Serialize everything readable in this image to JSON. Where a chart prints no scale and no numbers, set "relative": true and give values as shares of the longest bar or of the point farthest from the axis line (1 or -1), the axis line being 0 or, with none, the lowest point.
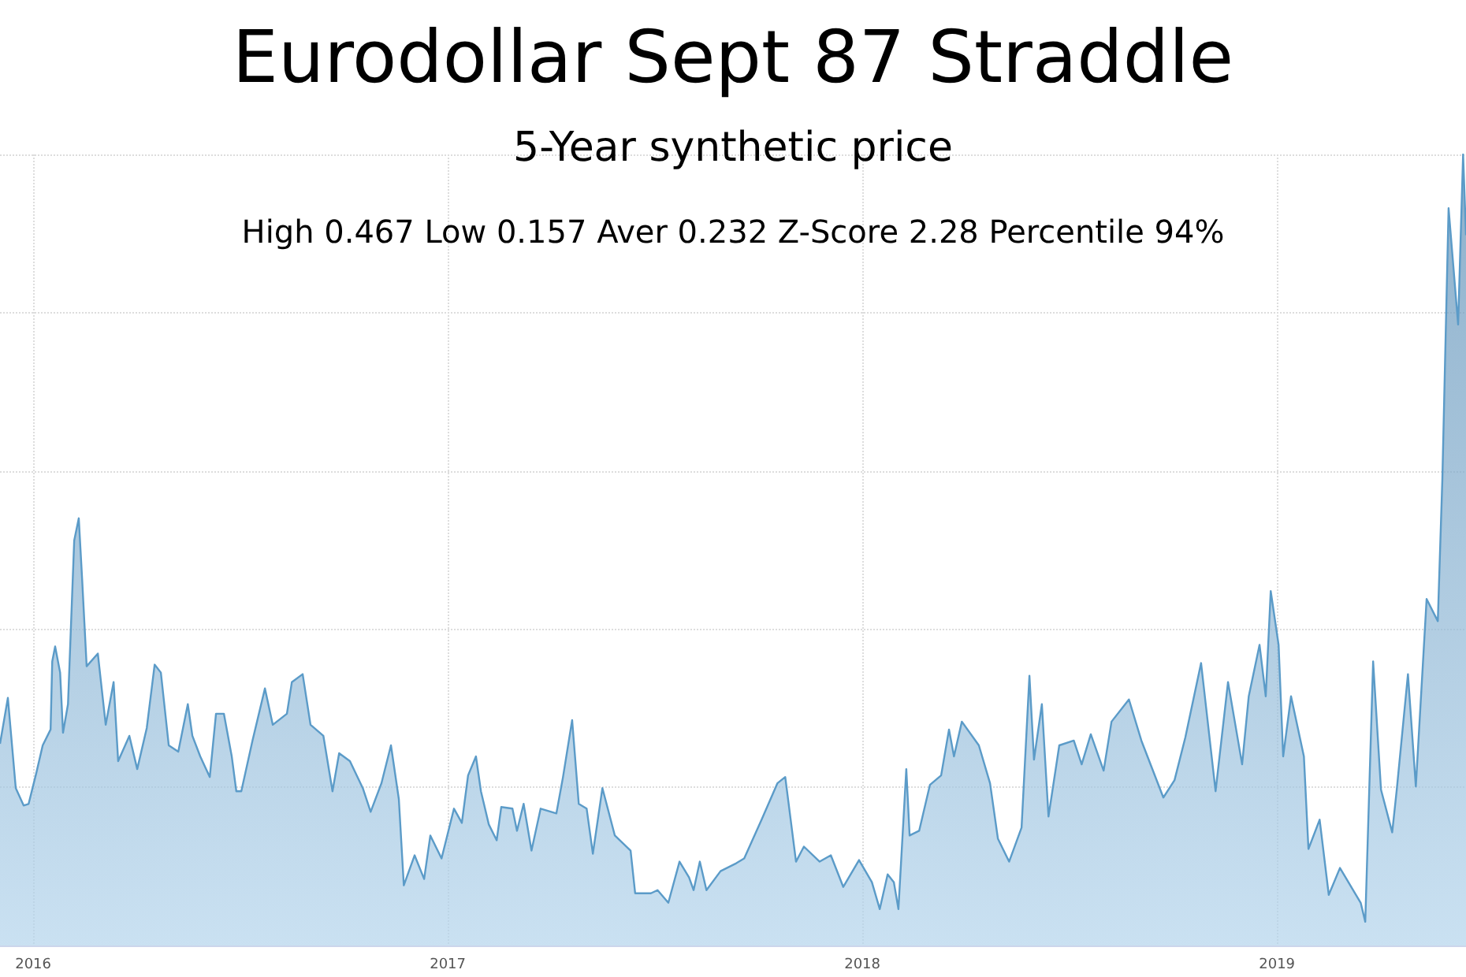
{
  "chart_data": {
    "type": "area",
    "title": "Eurodollar Sept 87 Straddle",
    "subtitle": "5-Year synthetic price",
    "annotations": [
      "High 0.467 Low 0.157 Aver 0.232 Z-Score 2.28 Percentile 94%"
    ],
    "relative": true,
    "grid": true,
    "color": "#5b9bc8",
    "xlim": [
      2015.92,
      2019.456
    ],
    "xticks": [
      2016,
      2017,
      2018,
      2019
    ],
    "x": [
      2015.92,
      2015.939,
      2015.958,
      2015.977,
      2015.989,
      2016.008,
      2016.023,
      2016.042,
      2016.046,
      2016.053,
      2016.065,
      2016.072,
      2016.084,
      2016.099,
      2016.11,
      2016.118,
      2016.129,
      2016.156,
      2016.175,
      2016.194,
      2016.205,
      2016.232,
      2016.251,
      2016.274,
      2016.293,
      2016.308,
      2016.327,
      2016.35,
      2016.373,
      2016.384,
      2016.403,
      2016.426,
      2016.441,
      2016.46,
      2016.479,
      2016.49,
      2016.502,
      2016.529,
      2016.559,
      2016.578,
      2016.612,
      2016.624,
      2016.65,
      2016.669,
      2016.7,
      2016.722,
      2016.738,
      2016.764,
      2016.795,
      2016.814,
      2016.84,
      2016.863,
      2016.882,
      2016.894,
      2016.92,
      2016.943,
      2016.958,
      2016.985,
      2017.015,
      2017.034,
      2017.049,
      2017.068,
      2017.08,
      2017.099,
      2017.118,
      2017.129,
      2017.156,
      2017.167,
      2017.183,
      2017.202,
      2017.224,
      2017.262,
      2017.278,
      2017.3,
      2017.316,
      2017.335,
      2017.35,
      2017.373,
      2017.403,
      2017.441,
      2017.452,
      2017.49,
      2017.506,
      2017.532,
      2017.559,
      2017.582,
      2017.593,
      2017.608,
      2017.624,
      2017.658,
      2017.696,
      2017.715,
      2017.757,
      2017.795,
      2017.814,
      2017.84,
      2017.859,
      2017.897,
      2017.924,
      2017.954,
      2017.992,
      2018.023,
      2018.042,
      2018.061,
      2018.076,
      2018.087,
      2018.106,
      2018.114,
      2018.137,
      2018.163,
      2018.19,
      2018.209,
      2018.221,
      2018.24,
      2018.281,
      2018.308,
      2018.327,
      2018.354,
      2018.384,
      2018.403,
      2018.414,
      2018.433,
      2018.449,
      2018.475,
      2018.51,
      2018.529,
      2018.551,
      2018.582,
      2018.601,
      2018.643,
      2018.673,
      2018.726,
      2018.753,
      2018.779,
      2018.817,
      2018.852,
      2018.882,
      2018.916,
      2018.932,
      2018.958,
      2018.973,
      2018.985,
      2019.004,
      2019.015,
      2019.034,
      2019.065,
      2019.076,
      2019.103,
      2019.125,
      2019.152,
      2019.202,
      2019.213,
      2019.232,
      2019.251,
      2019.278,
      2019.289,
      2019.316,
      2019.335,
      2019.361,
      2019.388,
      2019.399,
      2019.414,
      2019.437,
      2019.449,
      2019.456
    ],
    "values": [
      0.255,
      0.313,
      0.199,
      0.177,
      0.179,
      0.219,
      0.253,
      0.273,
      0.359,
      0.378,
      0.345,
      0.269,
      0.305,
      0.512,
      0.54,
      0.464,
      0.353,
      0.369,
      0.279,
      0.333,
      0.233,
      0.265,
      0.223,
      0.275,
      0.355,
      0.345,
      0.253,
      0.245,
      0.305,
      0.265,
      0.239,
      0.213,
      0.293,
      0.293,
      0.239,
      0.195,
      0.195,
      0.259,
      0.325,
      0.279,
      0.293,
      0.333,
      0.343,
      0.279,
      0.265,
      0.195,
      0.243,
      0.233,
      0.199,
      0.169,
      0.205,
      0.253,
      0.185,
      0.076,
      0.114,
      0.084,
      0.139,
      0.11,
      0.173,
      0.155,
      0.215,
      0.239,
      0.195,
      0.153,
      0.133,
      0.175,
      0.173,
      0.145,
      0.179,
      0.12,
      0.173,
      0.167,
      0.213,
      0.285,
      0.179,
      0.173,
      0.116,
      0.199,
      0.139,
      0.12,
      0.066,
      0.066,
      0.07,
      0.054,
      0.106,
      0.086,
      0.07,
      0.106,
      0.07,
      0.094,
      0.104,
      0.11,
      0.159,
      0.205,
      0.213,
      0.106,
      0.125,
      0.106,
      0.114,
      0.074,
      0.108,
      0.08,
      0.046,
      0.09,
      0.08,
      0.046,
      0.223,
      0.139,
      0.145,
      0.203,
      0.215,
      0.273,
      0.239,
      0.283,
      0.253,
      0.205,
      0.135,
      0.106,
      0.149,
      0.341,
      0.235,
      0.305,
      0.163,
      0.253,
      0.259,
      0.229,
      0.267,
      0.221,
      0.283,
      0.311,
      0.259,
      0.187,
      0.209,
      0.263,
      0.357,
      0.195,
      0.333,
      0.229,
      0.315,
      0.38,
      0.315,
      0.448,
      0.38,
      0.239,
      0.315,
      0.239,
      0.122,
      0.159,
      0.064,
      0.098,
      0.054,
      0.03,
      0.359,
      0.197,
      0.143,
      0.197,
      0.343,
      0.201,
      0.438,
      0.41,
      0.59,
      0.932,
      0.785,
      1,
      0.898
    ]
  }
}
